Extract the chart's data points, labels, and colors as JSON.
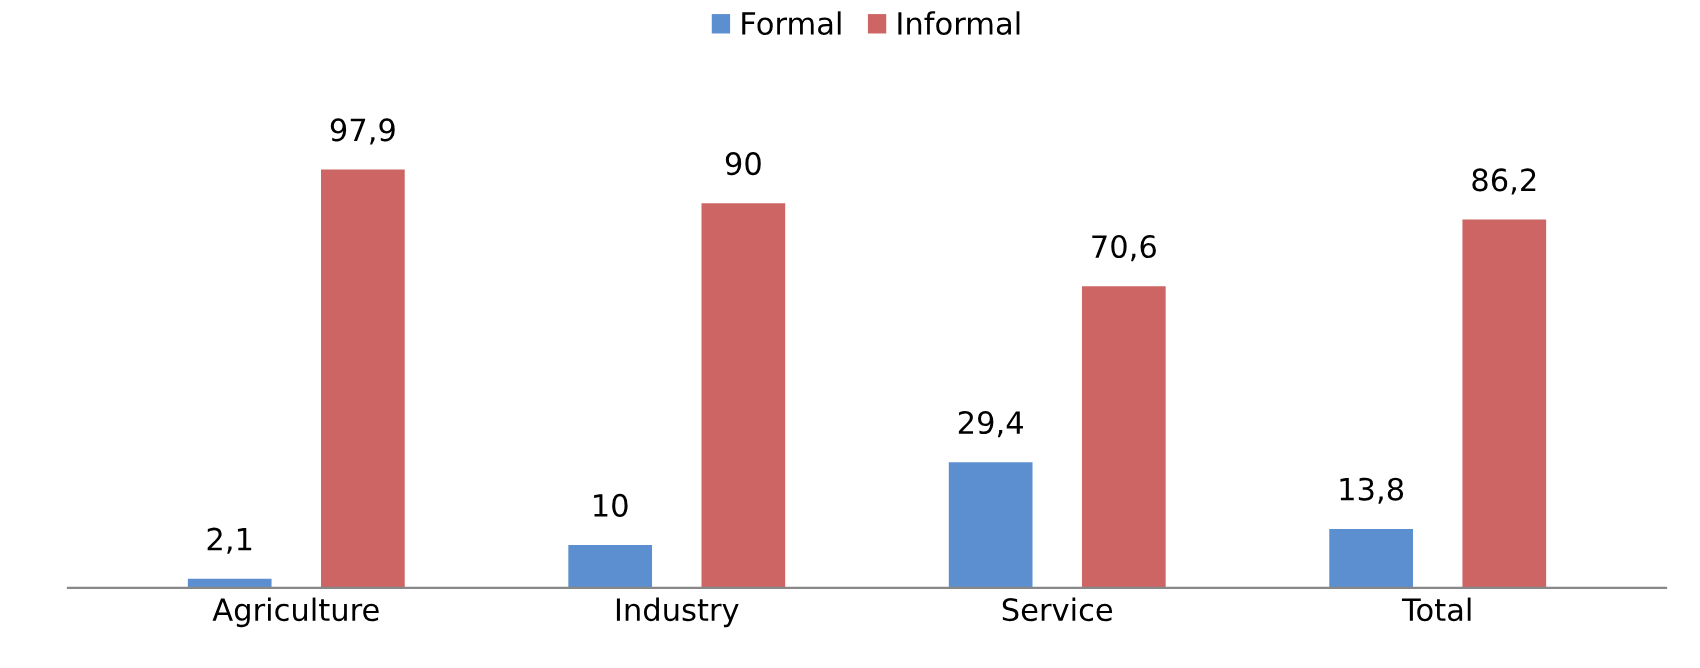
{
  "chart_data": {
    "type": "bar",
    "categories": [
      "Agriculture",
      "Industry",
      "Service",
      "Total"
    ],
    "series": [
      {
        "name": "Formal",
        "color": "#5b8fcf",
        "values": [
          2.1,
          10,
          29.4,
          13.8
        ],
        "value_labels": [
          "2,1",
          "10",
          "29,4",
          "13,8"
        ]
      },
      {
        "name": "Informal",
        "color": "#cd6564",
        "values": [
          97.9,
          90,
          70.6,
          86.2
        ],
        "value_labels": [
          "97,9",
          "90",
          "70,6",
          "86,2"
        ]
      }
    ],
    "legend": "top",
    "grid": false
  }
}
